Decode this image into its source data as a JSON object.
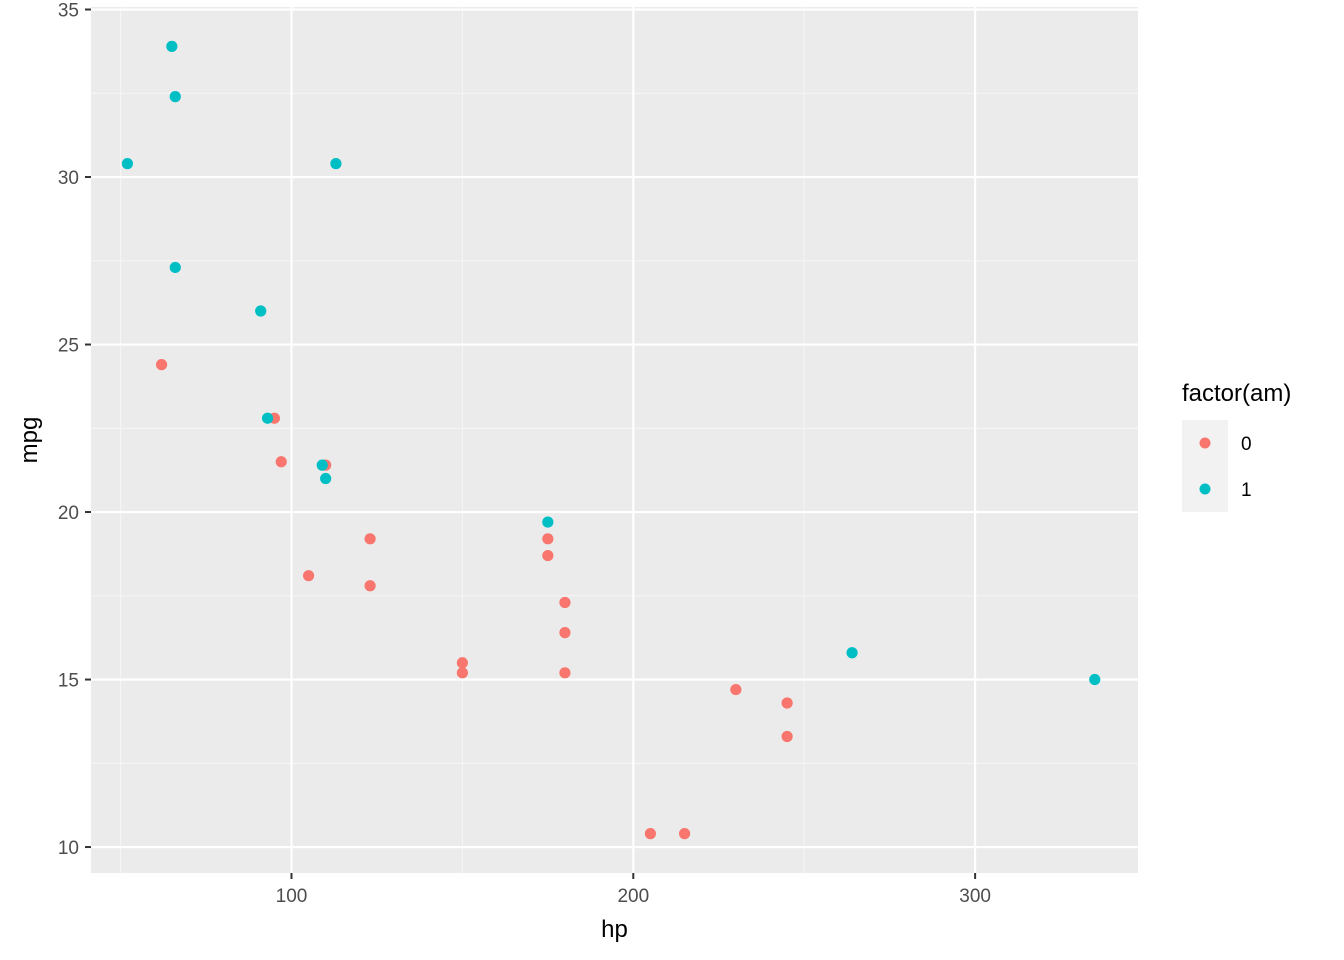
{
  "chart_data": {
    "type": "scatter",
    "title": "",
    "xlabel": "hp",
    "ylabel": "mpg",
    "xlim": [
      41.35,
      347.65
    ],
    "ylim": [
      9.225,
      35.075
    ],
    "x_ticks": [
      100,
      200,
      300
    ],
    "x_tick_labels": [
      "100",
      "200",
      "300"
    ],
    "y_ticks": [
      10,
      15,
      20,
      25,
      30,
      35
    ],
    "y_tick_labels": [
      "10",
      "15",
      "20",
      "25",
      "30",
      "35"
    ],
    "grid": true,
    "legend": {
      "title": "factor(am)",
      "position": "right"
    },
    "series": [
      {
        "name": "0",
        "color": "#F8766D",
        "points": [
          {
            "x": 110,
            "y": 21.4
          },
          {
            "x": 175,
            "y": 18.7
          },
          {
            "x": 105,
            "y": 18.1
          },
          {
            "x": 245,
            "y": 14.3
          },
          {
            "x": 62,
            "y": 24.4
          },
          {
            "x": 95,
            "y": 22.8
          },
          {
            "x": 123,
            "y": 19.2
          },
          {
            "x": 123,
            "y": 17.8
          },
          {
            "x": 180,
            "y": 16.4
          },
          {
            "x": 180,
            "y": 17.3
          },
          {
            "x": 180,
            "y": 15.2
          },
          {
            "x": 205,
            "y": 10.4
          },
          {
            "x": 215,
            "y": 10.4
          },
          {
            "x": 230,
            "y": 14.7
          },
          {
            "x": 97,
            "y": 21.5
          },
          {
            "x": 150,
            "y": 15.5
          },
          {
            "x": 150,
            "y": 15.2
          },
          {
            "x": 245,
            "y": 13.3
          },
          {
            "x": 175,
            "y": 19.2
          }
        ]
      },
      {
        "name": "1",
        "color": "#00BFC4",
        "points": [
          {
            "x": 110,
            "y": 21.0
          },
          {
            "x": 109,
            "y": 21.4
          },
          {
            "x": 93,
            "y": 22.8
          },
          {
            "x": 66,
            "y": 32.4
          },
          {
            "x": 52,
            "y": 30.4
          },
          {
            "x": 65,
            "y": 33.9
          },
          {
            "x": 66,
            "y": 27.3
          },
          {
            "x": 91,
            "y": 26.0
          },
          {
            "x": 113,
            "y": 30.4
          },
          {
            "x": 264,
            "y": 15.8
          },
          {
            "x": 175,
            "y": 19.7
          },
          {
            "x": 335,
            "y": 15.0
          }
        ]
      }
    ]
  },
  "colors": {
    "panel_background": "#EBEBEB",
    "grid_major": "#FFFFFF",
    "grid_minor": "#F5F5F5"
  }
}
